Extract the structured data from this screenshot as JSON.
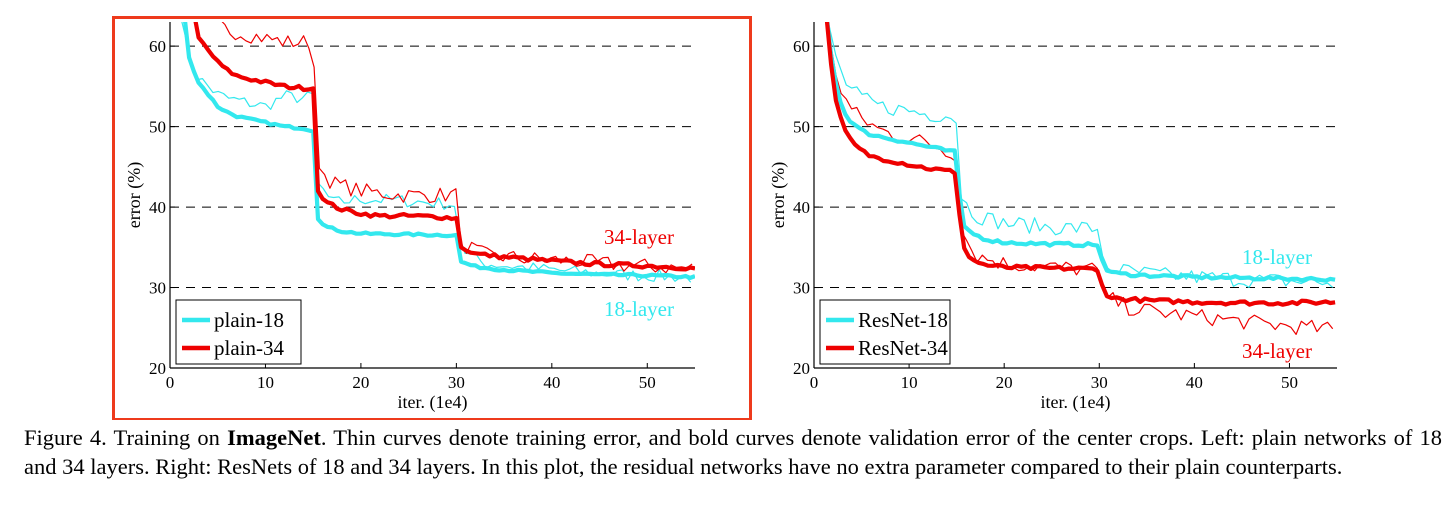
{
  "chart_data": [
    {
      "type": "line",
      "id": "plain",
      "selected": true,
      "xlabel": "iter. (1e4)",
      "ylabel": "error (%)",
      "xlim": [
        0,
        55
      ],
      "ylim": [
        20,
        63
      ],
      "xticks": [
        0,
        10,
        20,
        30,
        40,
        50
      ],
      "yticks": [
        20,
        30,
        40,
        50,
        60
      ],
      "grid": "horizontal dashed at 30, 40, 50, 60",
      "legend_position": "bottom-left",
      "legend": [
        {
          "label": "plain-18",
          "color": "#33e8ee"
        },
        {
          "label": "plain-34",
          "color": "#ee0000"
        }
      ],
      "annotations": [
        {
          "text": "34-layer",
          "color": "#ee0000"
        },
        {
          "text": "18-layer",
          "color": "#33e8ee"
        }
      ],
      "series": [
        {
          "name": "plain-18 train",
          "color": "#33e8ee",
          "width": "thin",
          "noise": 0.8,
          "points": [
            [
              1.2,
              64
            ],
            [
              2,
              58
            ],
            [
              3,
              56
            ],
            [
              4,
              55
            ],
            [
              5,
              54
            ],
            [
              6,
              53.5
            ],
            [
              8,
              53
            ],
            [
              10,
              52.5
            ],
            [
              12,
              53.8
            ],
            [
              14,
              53.5
            ],
            [
              15,
              53.8
            ],
            [
              15.5,
              43
            ],
            [
              17,
              40.5
            ],
            [
              20,
              41
            ],
            [
              24,
              40.8
            ],
            [
              28,
              40.5
            ],
            [
              30,
              40.3
            ],
            [
              30.5,
              34.5
            ],
            [
              33,
              33
            ],
            [
              37,
              32.5
            ],
            [
              42,
              32
            ],
            [
              47,
              31.6
            ],
            [
              52,
              31.4
            ],
            [
              55,
              31.2
            ]
          ]
        },
        {
          "name": "plain-34 train",
          "color": "#ee0000",
          "width": "thin",
          "noise": 1.0,
          "points": [
            [
              3,
              64
            ],
            [
              4.5,
              63
            ],
            [
              6,
              62
            ],
            [
              8,
              61.5
            ],
            [
              10,
              61
            ],
            [
              12,
              60.5
            ],
            [
              14,
              60.5
            ],
            [
              15,
              60.5
            ],
            [
              15.5,
              45
            ],
            [
              17,
              43
            ],
            [
              20,
              42
            ],
            [
              24,
              41.5
            ],
            [
              28,
              41.5
            ],
            [
              30,
              41.5
            ],
            [
              30.5,
              35.5
            ],
            [
              33,
              34
            ],
            [
              37,
              33.6
            ],
            [
              42,
              33.3
            ],
            [
              47,
              32.8
            ],
            [
              52,
              32.5
            ],
            [
              55,
              32.4
            ]
          ]
        },
        {
          "name": "plain-18 val",
          "color": "#33e8ee",
          "width": "bold",
          "noise": 0.15,
          "points": [
            [
              1.5,
              64
            ],
            [
              2,
              58.5
            ],
            [
              3,
              55.5
            ],
            [
              4,
              54
            ],
            [
              5,
              52.5
            ],
            [
              6,
              51.8
            ],
            [
              7,
              51.3
            ],
            [
              8,
              51
            ],
            [
              10,
              50.5
            ],
            [
              12,
              50
            ],
            [
              14,
              49.8
            ],
            [
              15,
              49.5
            ],
            [
              15.5,
              38.5
            ],
            [
              16.5,
              37.5
            ],
            [
              18,
              37
            ],
            [
              20,
              36.7
            ],
            [
              25,
              36.6
            ],
            [
              30,
              36.5
            ],
            [
              30.5,
              33.2
            ],
            [
              32,
              32.6
            ],
            [
              35,
              32.2
            ],
            [
              40,
              31.8
            ],
            [
              45,
              31.6
            ],
            [
              50,
              31.5
            ],
            [
              55,
              31.3
            ]
          ]
        },
        {
          "name": "plain-34 val",
          "color": "#ee0000",
          "width": "bold",
          "noise": 0.25,
          "points": [
            [
              2.5,
              64
            ],
            [
              3,
              61
            ],
            [
              4,
              59.5
            ],
            [
              5,
              58
            ],
            [
              6,
              57
            ],
            [
              7,
              56.3
            ],
            [
              8,
              56
            ],
            [
              10,
              55.5
            ],
            [
              12,
              55
            ],
            [
              14,
              54.8
            ],
            [
              15,
              54.8
            ],
            [
              15.5,
              42
            ],
            [
              16.5,
              40.5
            ],
            [
              18,
              39.7
            ],
            [
              20,
              39.2
            ],
            [
              22,
              38.9
            ],
            [
              25,
              38.9
            ],
            [
              28,
              38.8
            ],
            [
              30,
              38.6
            ],
            [
              30.5,
              35
            ],
            [
              32,
              34.2
            ],
            [
              35,
              33.8
            ],
            [
              40,
              33.3
            ],
            [
              45,
              32.9
            ],
            [
              50,
              32.7
            ],
            [
              55,
              32.4
            ]
          ]
        }
      ]
    },
    {
      "type": "line",
      "id": "resnet",
      "selected": false,
      "xlabel": "iter. (1e4)",
      "ylabel": "error (%)",
      "xlim": [
        0,
        55
      ],
      "ylim": [
        20,
        63
      ],
      "xticks": [
        0,
        10,
        20,
        30,
        40,
        50
      ],
      "yticks": [
        20,
        30,
        40,
        50,
        60
      ],
      "grid": "horizontal dashed at 30, 40, 50, 60",
      "legend_position": "bottom-left",
      "legend": [
        {
          "label": "ResNet-18",
          "color": "#33e8ee"
        },
        {
          "label": "ResNet-34",
          "color": "#ee0000"
        }
      ],
      "annotations": [
        {
          "text": "18-layer",
          "color": "#33e8ee"
        },
        {
          "text": "34-layer",
          "color": "#ee0000"
        }
      ],
      "series": [
        {
          "name": "ResNet-18 train",
          "color": "#33e8ee",
          "width": "thin",
          "noise": 1.0,
          "points": [
            [
              1.2,
              64
            ],
            [
              2,
              60
            ],
            [
              3,
              56
            ],
            [
              4,
              54.5
            ],
            [
              5,
              53.5
            ],
            [
              7,
              52.5
            ],
            [
              10,
              52
            ],
            [
              12,
              51.5
            ],
            [
              14,
              51.5
            ],
            [
              15,
              51
            ],
            [
              15.5,
              41
            ],
            [
              17,
              39
            ],
            [
              20,
              38
            ],
            [
              25,
              37.5
            ],
            [
              30,
              37.3
            ],
            [
              30.5,
              32.5
            ],
            [
              33,
              32
            ],
            [
              37,
              31.5
            ],
            [
              42,
              31.2
            ],
            [
              47,
              30.9
            ],
            [
              52,
              30.7
            ],
            [
              55,
              30.5
            ]
          ]
        },
        {
          "name": "ResNet-34 train",
          "color": "#ee0000",
          "width": "thin",
          "noise": 1.0,
          "points": [
            [
              1.2,
              64
            ],
            [
              2,
              58
            ],
            [
              3,
              54
            ],
            [
              4,
              52
            ],
            [
              5,
              51
            ],
            [
              7,
              49.5
            ],
            [
              10,
              48.5
            ],
            [
              12,
              48
            ],
            [
              14,
              47
            ],
            [
              15,
              46.5
            ],
            [
              15.5,
              37
            ],
            [
              17,
              34
            ],
            [
              20,
              33
            ],
            [
              25,
              32.5
            ],
            [
              30,
              32.2
            ],
            [
              30.5,
              29
            ],
            [
              33,
              27.5
            ],
            [
              37,
              26.8
            ],
            [
              42,
              26.2
            ],
            [
              47,
              25.5
            ],
            [
              52,
              25
            ],
            [
              55,
              24.7
            ]
          ]
        },
        {
          "name": "ResNet-18 val",
          "color": "#33e8ee",
          "width": "bold",
          "noise": 0.2,
          "points": [
            [
              1.3,
              64
            ],
            [
              2,
              57
            ],
            [
              3,
              52
            ],
            [
              4,
              50.5
            ],
            [
              5,
              49.5
            ],
            [
              6,
              49
            ],
            [
              8,
              48.5
            ],
            [
              10,
              48
            ],
            [
              12,
              47.5
            ],
            [
              14,
              47
            ],
            [
              15,
              46.8
            ],
            [
              15.5,
              38
            ],
            [
              16.5,
              36.8
            ],
            [
              18,
              36
            ],
            [
              20,
              35.6
            ],
            [
              25,
              35.4
            ],
            [
              30,
              35.3
            ],
            [
              30.5,
              32.2
            ],
            [
              32,
              31.7
            ],
            [
              35,
              31.5
            ],
            [
              40,
              31.3
            ],
            [
              45,
              31.2
            ],
            [
              50,
              31.1
            ],
            [
              55,
              31
            ]
          ]
        },
        {
          "name": "ResNet-34 val",
          "color": "#ee0000",
          "width": "bold",
          "noise": 0.25,
          "points": [
            [
              1.3,
              64
            ],
            [
              2,
              55
            ],
            [
              3,
              50
            ],
            [
              4,
              48
            ],
            [
              5,
              47
            ],
            [
              6,
              46.3
            ],
            [
              8,
              45.8
            ],
            [
              10,
              45.3
            ],
            [
              12,
              44.8
            ],
            [
              14,
              44.5
            ],
            [
              15,
              44.3
            ],
            [
              15.5,
              35.5
            ],
            [
              16.5,
              33.5
            ],
            [
              18,
              32.8
            ],
            [
              20,
              32.5
            ],
            [
              25,
              32.4
            ],
            [
              30,
              32.3
            ],
            [
              30.5,
              29
            ],
            [
              32,
              28.6
            ],
            [
              35,
              28.4
            ],
            [
              40,
              28.2
            ],
            [
              45,
              28.1
            ],
            [
              50,
              28.1
            ],
            [
              55,
              28.2
            ]
          ]
        }
      ]
    }
  ],
  "caption": {
    "prefix": "Figure 4. Training on ",
    "bold": "ImageNet",
    "rest": ". Thin curves denote training error, and bold curves denote validation error of the center crops. Left: plain networks of 18 and 34 layers. Right: ResNets of 18 and 34 layers. In this plot, the residual networks have no extra parameter compared to their plain counterparts."
  },
  "colors": {
    "cyan": "#33e8ee",
    "red": "#ee0000",
    "selection": "#ee3a1c"
  }
}
